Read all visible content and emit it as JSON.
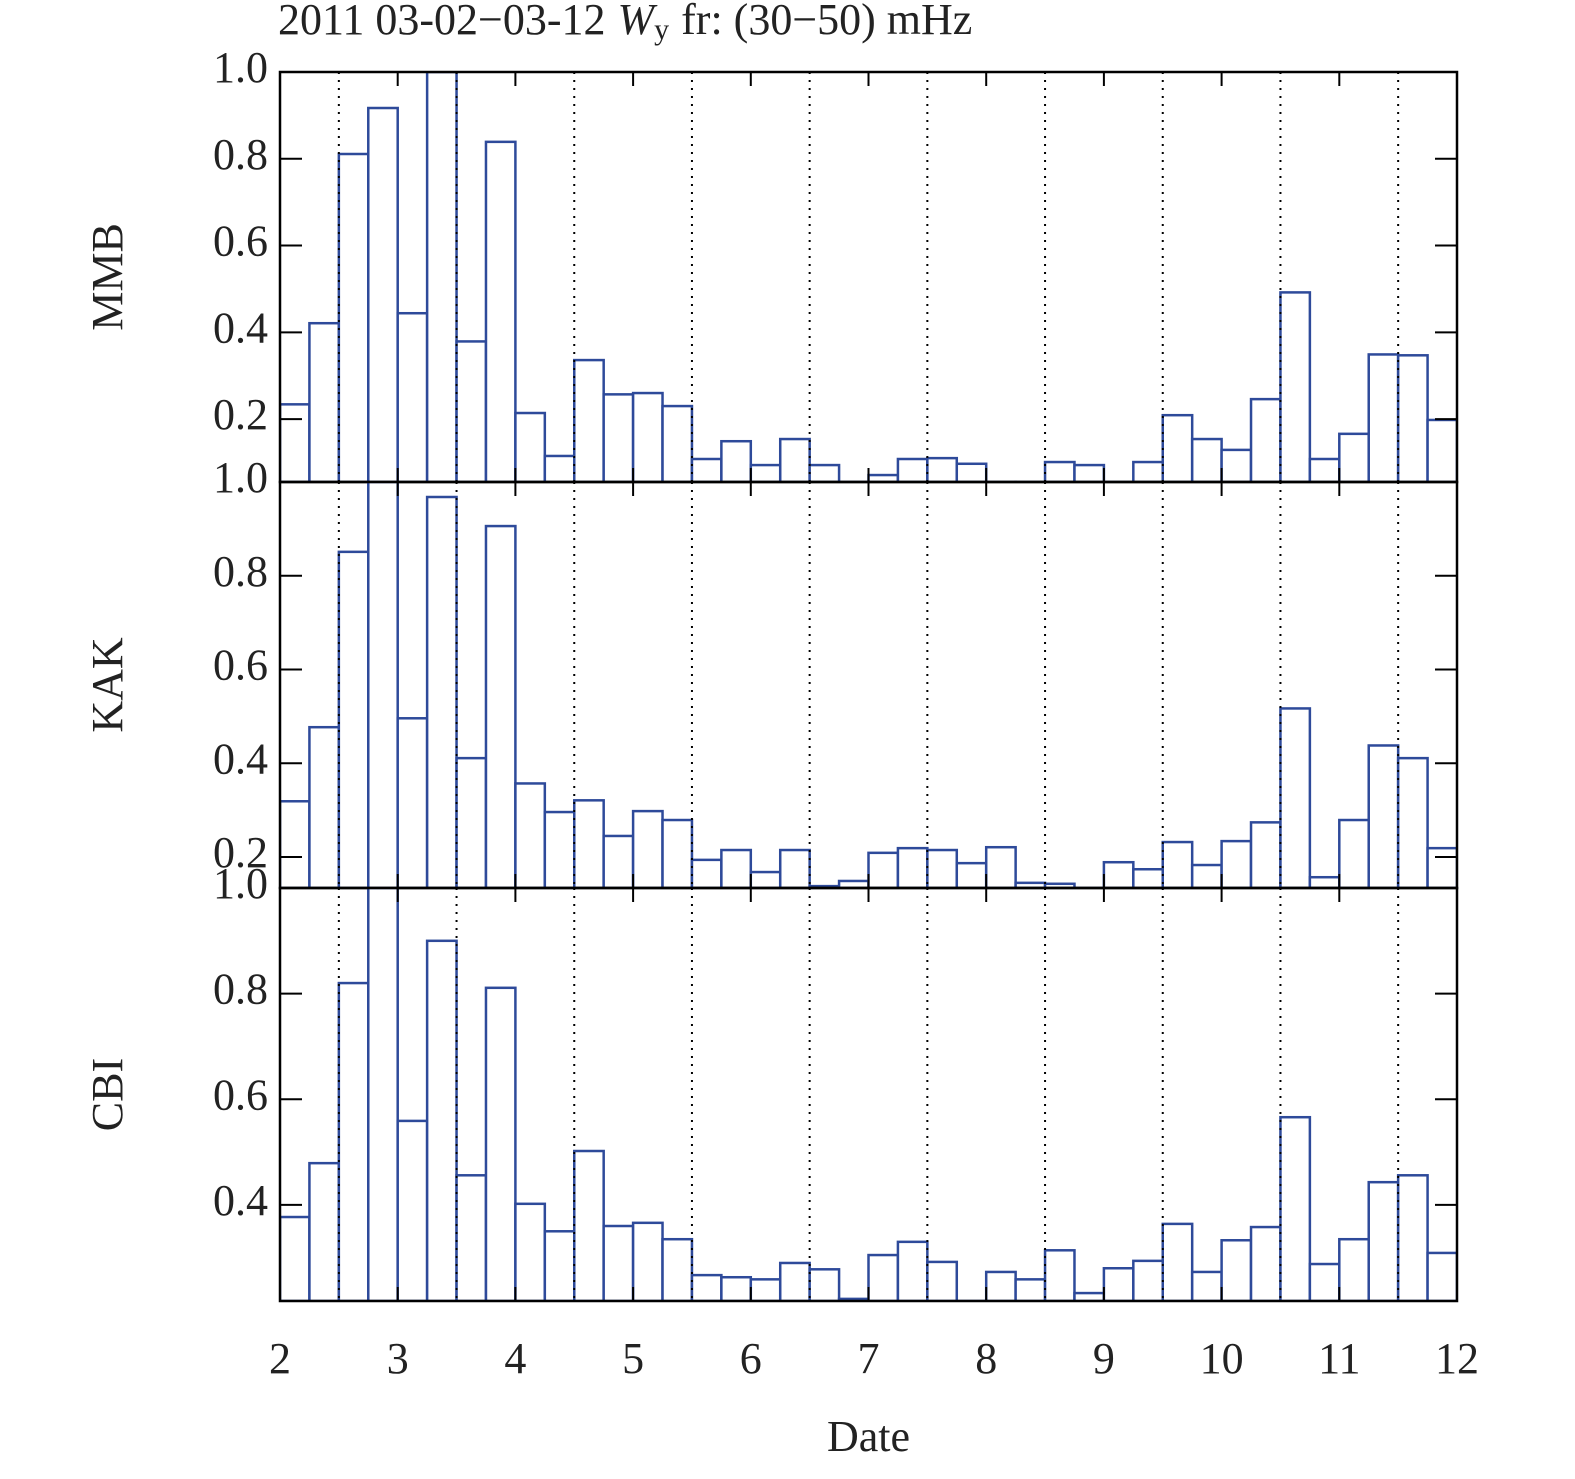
{
  "title": {
    "before": "2011 03-02−03-12",
    "symbol": "W",
    "subscript": "y",
    "after": "fr: (30−50) mHz"
  },
  "chart_data": [
    {
      "type": "histogram",
      "ylabel": "MMB",
      "color": "#2e4a9a",
      "bins": [
        2,
        2.25,
        2.5,
        2.75,
        3,
        3.25,
        3.5,
        3.75,
        4,
        4.25,
        4.5,
        4.75,
        5,
        5.25,
        5.5,
        5.75,
        6,
        6.25,
        6.5,
        6.75,
        7,
        7.25,
        7.5,
        7.75,
        8,
        8.25,
        8.5,
        8.75,
        9,
        9.25,
        9.5,
        9.75,
        10,
        10.25,
        10.5,
        10.75,
        11,
        11.25,
        11.5,
        11.75,
        12
      ],
      "values": [
        0.234,
        0.421,
        0.811,
        0.917,
        0.444,
        1.0,
        0.379,
        0.839,
        0.214,
        0.115,
        0.336,
        0.257,
        0.26,
        0.23,
        0.108,
        0.149,
        0.094,
        0.154,
        0.094,
        0.04,
        0.071,
        0.108,
        0.11,
        0.097,
        0.04,
        0.04,
        0.101,
        0.094,
        0.04,
        0.101,
        0.209,
        0.154,
        0.129,
        0.246,
        0.492,
        0.108,
        0.166,
        0.349,
        0.347,
        0.198
      ],
      "xlim": [
        2,
        12
      ],
      "ylim": [
        0.055,
        1.0
      ],
      "yticks": [
        0.2,
        0.4,
        0.6,
        0.8,
        {
          "value": 1,
          "label": "1.0"
        }
      ],
      "vlines": [
        2.5,
        3.5,
        4.5,
        5.5,
        6.5,
        7.5,
        8.5,
        9.5,
        10.5,
        11.5
      ]
    },
    {
      "type": "histogram",
      "ylabel": "KAK",
      "color": "#2e4a9a",
      "bins": [
        2,
        2.25,
        2.5,
        2.75,
        3,
        3.25,
        3.5,
        3.75,
        4,
        4.25,
        4.5,
        4.75,
        5,
        5.25,
        5.5,
        5.75,
        6,
        6.25,
        6.5,
        6.75,
        7,
        7.25,
        7.5,
        7.75,
        8,
        8.25,
        8.5,
        8.75,
        9,
        9.25,
        9.5,
        9.75,
        10,
        10.25,
        10.5,
        10.75,
        11,
        11.25,
        11.5,
        11.75,
        12
      ],
      "values": [
        0.319,
        0.477,
        0.851,
        1.0,
        0.496,
        0.968,
        0.411,
        0.906,
        0.357,
        0.296,
        0.321,
        0.245,
        0.298,
        0.279,
        0.194,
        0.215,
        0.168,
        0.215,
        0.138,
        0.149,
        0.209,
        0.219,
        0.215,
        0.187,
        0.221,
        0.145,
        0.143,
        0.12,
        0.189,
        0.174,
        0.232,
        0.183,
        0.234,
        0.274,
        0.517,
        0.157,
        0.279,
        0.438,
        0.411,
        0.219
      ],
      "xlim": [
        2,
        12
      ],
      "ylim": [
        0.134,
        1.0
      ],
      "yticks": [
        0.2,
        0.4,
        0.6,
        0.8,
        {
          "value": 1,
          "label": "1.0"
        }
      ],
      "vlines": [
        2.5,
        3.5,
        4.5,
        5.5,
        6.5,
        7.5,
        8.5,
        9.5,
        10.5,
        11.5
      ]
    },
    {
      "type": "histogram",
      "ylabel": "CBI",
      "color": "#2e4a9a",
      "xlabel": "Date",
      "bins": [
        2,
        2.25,
        2.5,
        2.75,
        3,
        3.25,
        3.5,
        3.75,
        4,
        4.25,
        4.5,
        4.75,
        5,
        5.25,
        5.5,
        5.75,
        6,
        6.25,
        6.5,
        6.75,
        7,
        7.25,
        7.5,
        7.75,
        8,
        8.25,
        8.5,
        8.75,
        9,
        9.25,
        9.5,
        9.75,
        10,
        10.25,
        10.5,
        10.75,
        11,
        11.25,
        11.5,
        11.75,
        12
      ],
      "values": [
        0.377,
        0.479,
        0.82,
        1.0,
        0.559,
        0.9,
        0.456,
        0.811,
        0.402,
        0.35,
        0.502,
        0.36,
        0.366,
        0.335,
        0.267,
        0.263,
        0.259,
        0.29,
        0.278,
        0.222,
        0.305,
        0.33,
        0.292,
        0.2,
        0.273,
        0.259,
        0.314,
        0.233,
        0.28,
        0.294,
        0.364,
        0.273,
        0.333,
        0.358,
        0.566,
        0.288,
        0.335,
        0.443,
        0.456,
        0.309
      ],
      "xlim": [
        2,
        12
      ],
      "ylim": [
        0.218,
        1.0
      ],
      "xticks": [
        2,
        3,
        4,
        5,
        6,
        7,
        8,
        9,
        10,
        11,
        12
      ],
      "yticks": [
        0.4,
        0.6,
        0.8,
        {
          "value": 1,
          "label": "1.0"
        }
      ],
      "vlines": [
        2.5,
        3.5,
        4.5,
        5.5,
        6.5,
        7.5,
        8.5,
        9.5,
        10.5,
        11.5
      ]
    }
  ]
}
